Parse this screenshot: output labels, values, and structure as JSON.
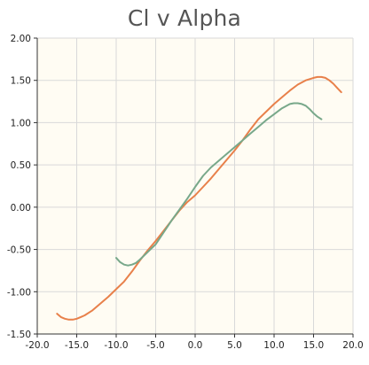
{
  "chart_data": {
    "type": "line",
    "title": "Cl v Alpha",
    "xlabel": "",
    "ylabel": "",
    "xlim": [
      -20,
      20
    ],
    "ylim": [
      -1.5,
      2.0
    ],
    "x_ticks": [
      -20,
      -15,
      -10,
      -5,
      0,
      5,
      10,
      15,
      20
    ],
    "x_tick_labels": [
      "-20.0",
      "-15.0",
      "-10.0",
      "-5.0",
      "0.0",
      "5.0",
      "10.0",
      "15.0",
      "20.0"
    ],
    "y_ticks": [
      -1.5,
      -1.0,
      -0.5,
      0.0,
      0.5,
      1.0,
      1.5,
      2.0
    ],
    "y_tick_labels": [
      "-1.50",
      "-1.00",
      "-0.50",
      "0.00",
      "0.50",
      "1.00",
      "1.50",
      "2.00"
    ],
    "grid": true,
    "legend": "none",
    "series": [
      {
        "color": "#e8804a",
        "x": [
          -17.5,
          -17.0,
          -16.5,
          -16.0,
          -15.5,
          -15.0,
          -14.5,
          -14.0,
          -13.0,
          -12.0,
          -11.0,
          -10.0,
          -9.0,
          -8.0,
          -7.0,
          -6.0,
          -5.0,
          -4.0,
          -3.0,
          -2.0,
          -1.0,
          0.0,
          1.0,
          2.0,
          3.0,
          4.0,
          5.0,
          6.0,
          7.0,
          8.0,
          9.0,
          10.0,
          11.0,
          12.0,
          13.0,
          14.0,
          15.0,
          15.5,
          16.0,
          16.5,
          17.0,
          17.5,
          18.0,
          18.5
        ],
        "y": [
          -1.26,
          -1.3,
          -1.32,
          -1.33,
          -1.33,
          -1.32,
          -1.3,
          -1.28,
          -1.22,
          -1.14,
          -1.06,
          -0.97,
          -0.88,
          -0.76,
          -0.63,
          -0.51,
          -0.4,
          -0.28,
          -0.16,
          -0.04,
          0.06,
          0.14,
          0.24,
          0.34,
          0.45,
          0.56,
          0.67,
          0.79,
          0.92,
          1.04,
          1.13,
          1.22,
          1.3,
          1.38,
          1.45,
          1.5,
          1.53,
          1.54,
          1.54,
          1.53,
          1.5,
          1.46,
          1.41,
          1.36
        ]
      },
      {
        "color": "#78a88a",
        "x": [
          -10.0,
          -9.5,
          -9.0,
          -8.5,
          -8.0,
          -7.5,
          -7.0,
          -6.0,
          -5.0,
          -4.0,
          -3.0,
          -2.0,
          -1.0,
          0.0,
          1.0,
          2.0,
          3.0,
          4.0,
          5.0,
          6.0,
          7.0,
          8.0,
          9.0,
          10.0,
          11.0,
          12.0,
          12.5,
          13.0,
          13.5,
          14.0,
          14.5,
          15.0,
          15.5,
          16.0
        ],
        "y": [
          -0.6,
          -0.65,
          -0.68,
          -0.69,
          -0.68,
          -0.66,
          -0.62,
          -0.53,
          -0.44,
          -0.3,
          -0.16,
          -0.03,
          0.1,
          0.24,
          0.37,
          0.47,
          0.55,
          0.63,
          0.71,
          0.79,
          0.87,
          0.95,
          1.03,
          1.1,
          1.17,
          1.22,
          1.23,
          1.23,
          1.22,
          1.2,
          1.16,
          1.11,
          1.07,
          1.04
        ]
      }
    ]
  }
}
